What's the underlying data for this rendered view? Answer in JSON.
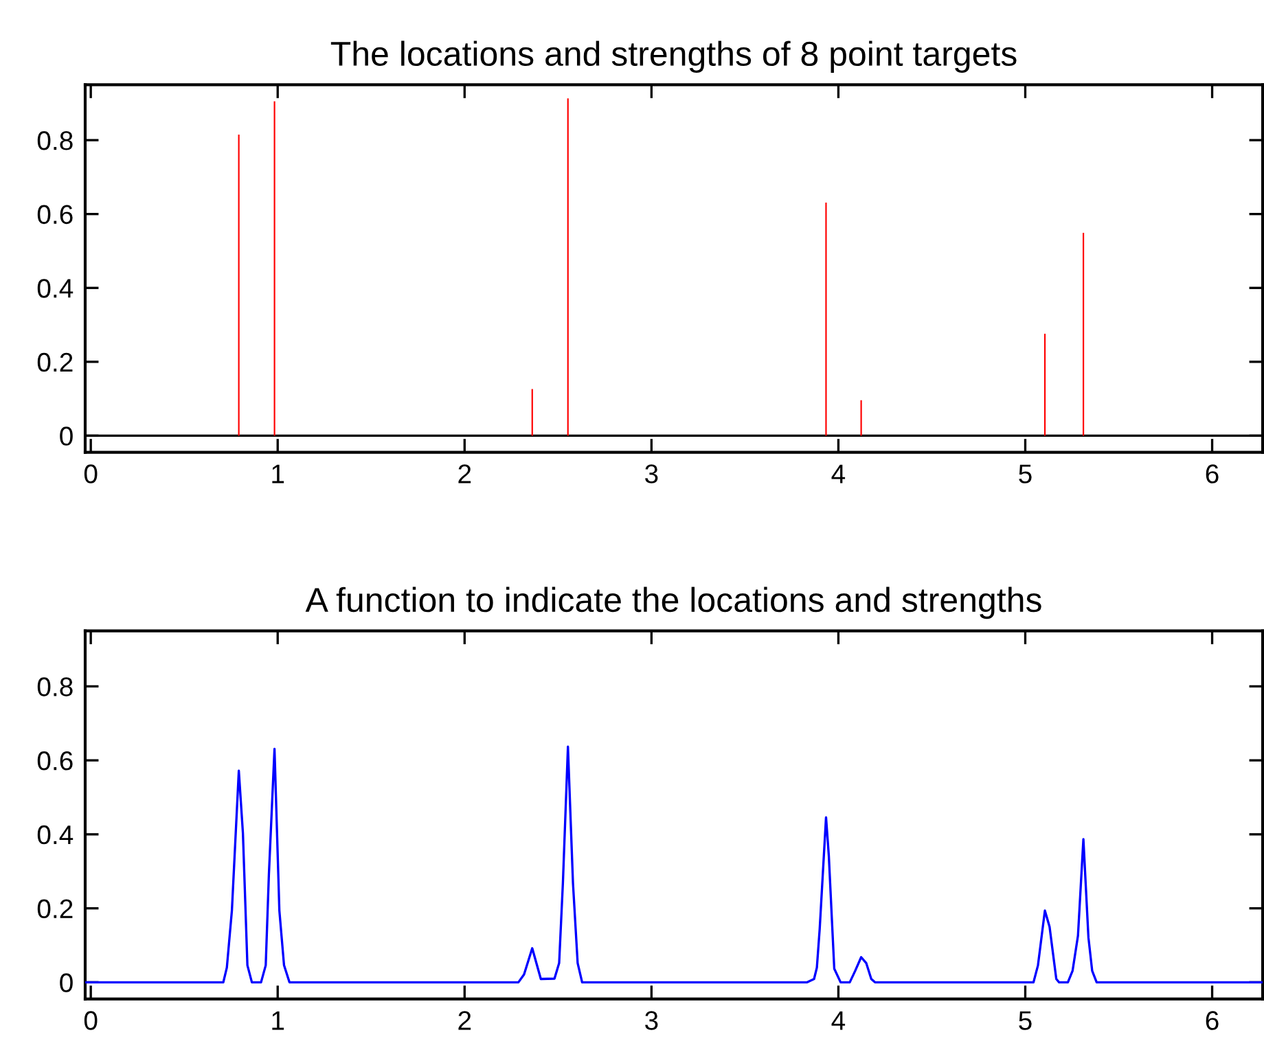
{
  "chart_data": [
    {
      "type": "bar",
      "title": "The locations and strengths of 8 point targets",
      "x": [
        0.792,
        0.983,
        2.362,
        2.553,
        3.934,
        4.122,
        5.105,
        5.311
      ],
      "series": [
        {
          "color": "#ff0000",
          "values": [
            0.815,
            0.905,
            0.126,
            0.913,
            0.631,
            0.096,
            0.276,
            0.549
          ]
        }
      ],
      "ref_lines": [
        {
          "axis": "y",
          "value": 0,
          "color": "#000000"
        }
      ],
      "xlim": [
        -0.03,
        6.27
      ],
      "ylim": [
        -0.045,
        0.95
      ],
      "xticks": [
        0,
        1,
        2,
        3,
        4,
        5,
        6
      ],
      "yticks": [
        0,
        0.2,
        0.4,
        0.6,
        0.8
      ],
      "grid": false,
      "legend": false
    },
    {
      "type": "line",
      "title": "A function to indicate the locations and strengths",
      "x": [
        -0.03,
        0.709,
        0.728,
        0.755,
        0.792,
        0.814,
        0.838,
        0.862,
        0.911,
        0.936,
        0.953,
        0.983,
        1.009,
        1.034,
        1.063,
        2.288,
        2.318,
        2.362,
        2.408,
        2.481,
        2.506,
        2.526,
        2.553,
        2.58,
        2.605,
        2.629,
        3.833,
        3.87,
        3.885,
        3.9,
        3.934,
        3.949,
        3.978,
        4.012,
        4.061,
        4.09,
        4.122,
        4.149,
        4.176,
        4.196,
        5.044,
        5.068,
        5.105,
        5.13,
        5.166,
        5.181,
        5.228,
        5.253,
        5.282,
        5.311,
        5.338,
        5.358,
        5.382,
        6.27
      ],
      "series": [
        {
          "color": "#0000ff",
          "values": [
            0,
            0,
            0.04,
            0.194,
            0.572,
            0.403,
            0.046,
            0,
            0,
            0.046,
            0.292,
            0.631,
            0.194,
            0.046,
            0,
            0,
            0.021,
            0.092,
            0.009,
            0.01,
            0.052,
            0.268,
            0.637,
            0.268,
            0.052,
            0,
            0,
            0.009,
            0.04,
            0.144,
            0.446,
            0.341,
            0.037,
            0,
            0,
            0.031,
            0.068,
            0.052,
            0.009,
            0,
            0,
            0.046,
            0.194,
            0.15,
            0.009,
            0,
            0,
            0.031,
            0.126,
            0.387,
            0.121,
            0.031,
            0,
            0
          ]
        }
      ],
      "xlim": [
        -0.03,
        6.27
      ],
      "ylim": [
        -0.045,
        0.95
      ],
      "xticks": [
        0,
        1,
        2,
        3,
        4,
        5,
        6
      ],
      "yticks": [
        0,
        0.2,
        0.4,
        0.6,
        0.8
      ],
      "grid": false,
      "legend": false,
      "marker": "none",
      "line_style": "solid"
    }
  ]
}
